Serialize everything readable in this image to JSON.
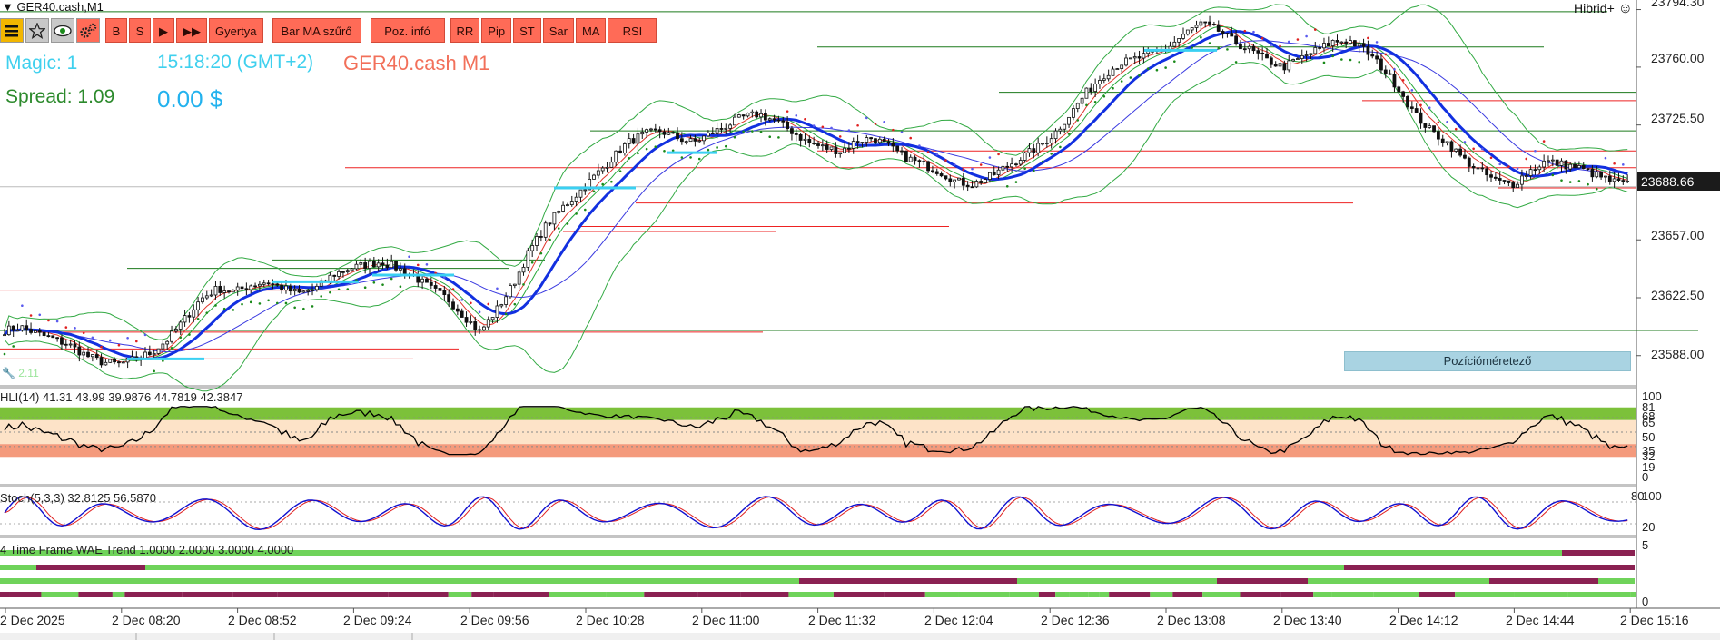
{
  "window": {
    "symbol_title": "GER40.cash,M1",
    "ea_name": "Hibrid+"
  },
  "toolbar": {
    "icons": [
      "menu-icon",
      "star-icon",
      "eye-icon",
      "gears-icon"
    ],
    "buttons": [
      "B",
      "S",
      "▶",
      "▶▶",
      "Gyertya",
      "Bar MA szűrő",
      "Poz. infó",
      "RR",
      "Pip",
      "ST",
      "Sar",
      "MA",
      "RSI"
    ]
  },
  "info": {
    "magic": "Magic: 1",
    "time": "15:18:20 (GMT+2)",
    "symbol": "GER40.cash M1",
    "spread": "Spread: 1.09",
    "profit": "0.00 $"
  },
  "main_price_axis": [
    "23794.30",
    "23760.00",
    "23725.50",
    "23657.00",
    "23622.50",
    "23588.00"
  ],
  "current_price": "23688.66",
  "position_sizer_label": "Pozícióméretező",
  "corner_marker": "2.11",
  "hli": {
    "title": "HLI(14) 41.31 43.99  39.9876 44.7819 42.3847",
    "levels": [
      "100",
      "81",
      "68",
      "65",
      "50",
      "35",
      "32",
      "19",
      "0"
    ]
  },
  "stoch": {
    "title": "Stoch(5,3,3) 32.8125 56.5870",
    "levels": [
      "100",
      "80",
      "20"
    ]
  },
  "wae": {
    "title": "4 Time Frame WAE Trend 1.0000 2.0000 3.0000 4.0000",
    "levels": [
      "5",
      "0"
    ]
  },
  "time_axis": [
    "2 Dec 2025",
    "2 Dec 08:20",
    "2 Dec 08:52",
    "2 Dec 09:24",
    "2 Dec 09:56",
    "2 Dec 10:28",
    "2 Dec 11:00",
    "2 Dec 11:32",
    "2 Dec 12:04",
    "2 Dec 12:36",
    "2 Dec 13:08",
    "2 Dec 13:40",
    "2 Dec 14:12",
    "2 Dec 14:44",
    "2 Dec 15:16"
  ],
  "chart_data": {
    "type": "candlestick",
    "price_range": [
      23570,
      23800
    ],
    "price_path": [
      23603,
      23605,
      23601,
      23598,
      23594,
      23588,
      23584,
      23583,
      23586,
      23590,
      23598,
      23610,
      23622,
      23628,
      23626,
      23630,
      23632,
      23628,
      23625,
      23628,
      23636,
      23640,
      23642,
      23644,
      23640,
      23635,
      23628,
      23622,
      23612,
      23602,
      23615,
      23630,
      23650,
      23665,
      23676,
      23685,
      23695,
      23705,
      23715,
      23720,
      23722,
      23718,
      23715,
      23720,
      23725,
      23730,
      23732,
      23728,
      23722,
      23715,
      23712,
      23710,
      23716,
      23718,
      23712,
      23706,
      23702,
      23698,
      23692,
      23690,
      23694,
      23700,
      23706,
      23712,
      23720,
      23732,
      23745,
      23755,
      23762,
      23765,
      23768,
      23772,
      23780,
      23786,
      23782,
      23775,
      23770,
      23764,
      23760,
      23765,
      23770,
      23775,
      23776,
      23770,
      23760,
      23748,
      23732,
      23722,
      23715,
      23705,
      23698,
      23692,
      23690,
      23698,
      23704,
      23702,
      23700,
      23696,
      23692,
      23690
    ]
  }
}
